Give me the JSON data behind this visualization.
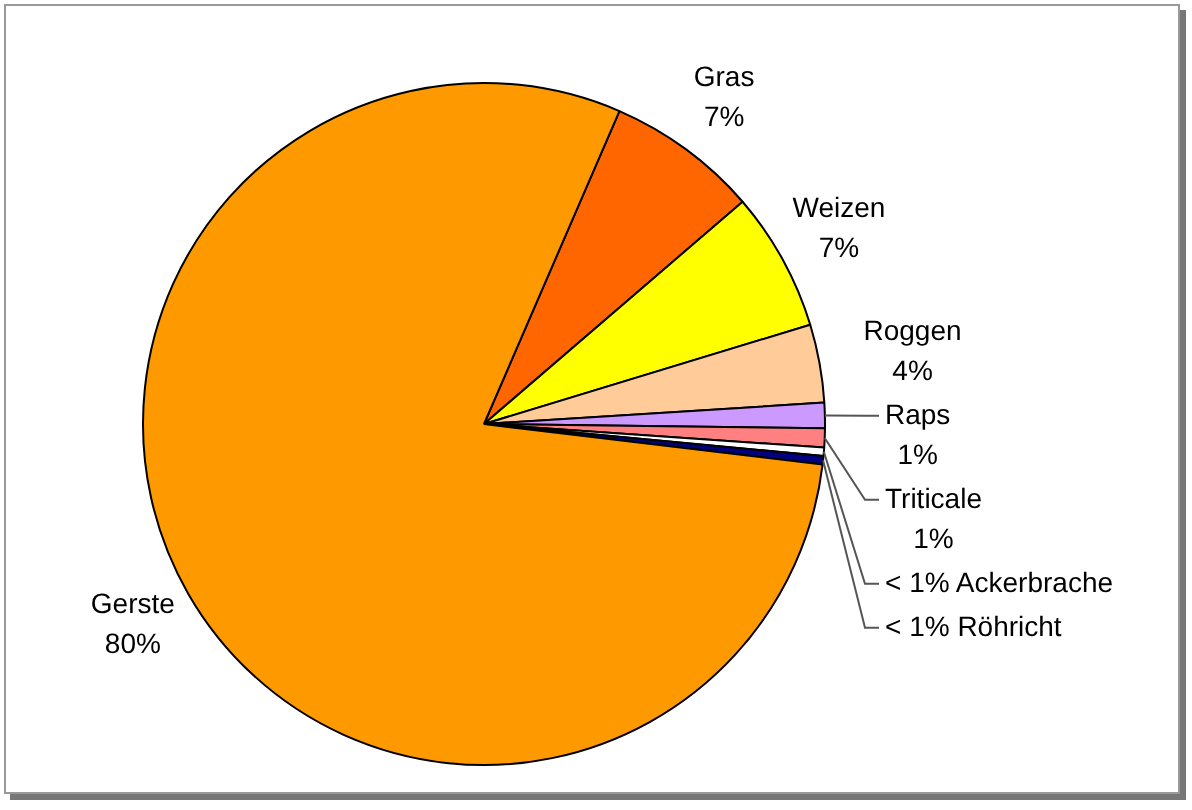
{
  "chart_data": {
    "type": "pie",
    "categories": [
      "Gras",
      "Weizen",
      "Roggen",
      "Raps",
      "Triticale",
      "Ackerbrache",
      "Röhricht",
      "Gerste"
    ],
    "values": [
      7.2,
      6.6,
      3.7,
      1.2,
      0.9,
      0.4,
      0.4,
      79.6
    ],
    "colors": [
      "#ff6600",
      "#ffff00",
      "#ffcc99",
      "#cc99ff",
      "#ff8080",
      "#ffffff",
      "#000080",
      "#ff9900"
    ],
    "value_labels": [
      "7%",
      "7%",
      "4%",
      "1%",
      "1%",
      "< 1%",
      "< 1%",
      "80%"
    ]
  }
}
